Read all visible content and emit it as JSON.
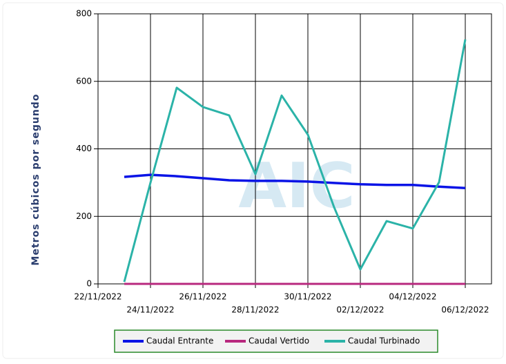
{
  "chart_data": {
    "type": "line",
    "y_label": "Metros cúbicos por segundo",
    "watermark": "AIC",
    "x": [
      "23/11/2022",
      "24/11/2022",
      "25/11/2022",
      "26/11/2022",
      "27/11/2022",
      "28/11/2022",
      "29/11/2022",
      "30/11/2022",
      "01/12/2022",
      "02/12/2022",
      "03/12/2022",
      "04/12/2022",
      "05/12/2022",
      "06/12/2022"
    ],
    "xlim": [
      "22/11/2022",
      "07/12/2022"
    ],
    "xticks": [
      "22/11/2022",
      "24/11/2022",
      "26/11/2022",
      "28/11/2022",
      "30/11/2022",
      "02/12/2022",
      "04/12/2022",
      "06/12/2022"
    ],
    "ylim": [
      0,
      800
    ],
    "yticks": [
      0,
      200,
      400,
      600,
      800
    ],
    "grid": true,
    "series": [
      {
        "name": "Caudal Entrante",
        "color": "#0a14e6",
        "values": [
          317,
          323,
          319,
          313,
          307,
          305,
          305,
          303,
          299,
          295,
          293,
          293,
          288,
          284
        ]
      },
      {
        "name": "Caudal Vertido",
        "color": "#b8287e",
        "values": [
          0,
          0,
          0,
          0,
          0,
          0,
          0,
          0,
          0,
          0,
          0,
          0,
          0,
          0
        ]
      },
      {
        "name": "Caudal Turbinado",
        "color": "#2bb3a8",
        "values": [
          6,
          300,
          581,
          524,
          499,
          325,
          558,
          442,
          227,
          43,
          186,
          164,
          301,
          724
        ]
      }
    ]
  }
}
